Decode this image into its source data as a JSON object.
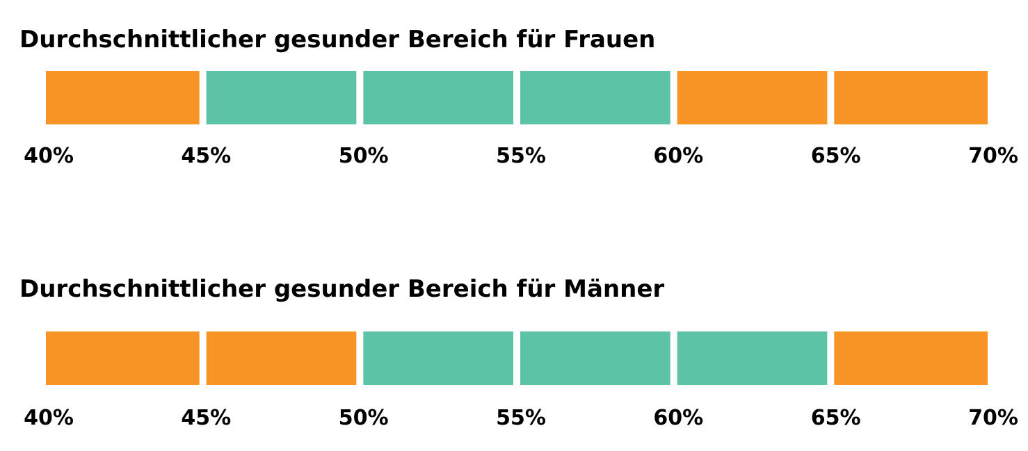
{
  "colors": {
    "healthy": "#5CC3A6",
    "outside": "#F79425"
  },
  "chart_data": [
    {
      "type": "bar",
      "title": "Durchschnittlicher gesunder Bereich für Frauen",
      "tick_labels": [
        "40%",
        "45%",
        "50%",
        "55%",
        "60%",
        "65%",
        "70%"
      ],
      "segments": [
        {
          "from": 40,
          "to": 45,
          "status": "outside"
        },
        {
          "from": 45,
          "to": 50,
          "status": "healthy"
        },
        {
          "from": 50,
          "to": 55,
          "status": "healthy"
        },
        {
          "from": 55,
          "to": 60,
          "status": "healthy"
        },
        {
          "from": 60,
          "to": 65,
          "status": "outside"
        },
        {
          "from": 65,
          "to": 70,
          "status": "outside"
        }
      ],
      "healthy_range": [
        45,
        60
      ],
      "xlim": [
        40,
        70
      ]
    },
    {
      "type": "bar",
      "title": "Durchschnittlicher gesunder Bereich für Männer",
      "tick_labels": [
        "40%",
        "45%",
        "50%",
        "55%",
        "60%",
        "65%",
        "70%"
      ],
      "segments": [
        {
          "from": 40,
          "to": 45,
          "status": "outside"
        },
        {
          "from": 45,
          "to": 50,
          "status": "outside"
        },
        {
          "from": 50,
          "to": 55,
          "status": "healthy"
        },
        {
          "from": 55,
          "to": 60,
          "status": "healthy"
        },
        {
          "from": 60,
          "to": 65,
          "status": "healthy"
        },
        {
          "from": 65,
          "to": 70,
          "status": "outside"
        }
      ],
      "healthy_range": [
        50,
        65
      ],
      "xlim": [
        40,
        70
      ]
    }
  ]
}
